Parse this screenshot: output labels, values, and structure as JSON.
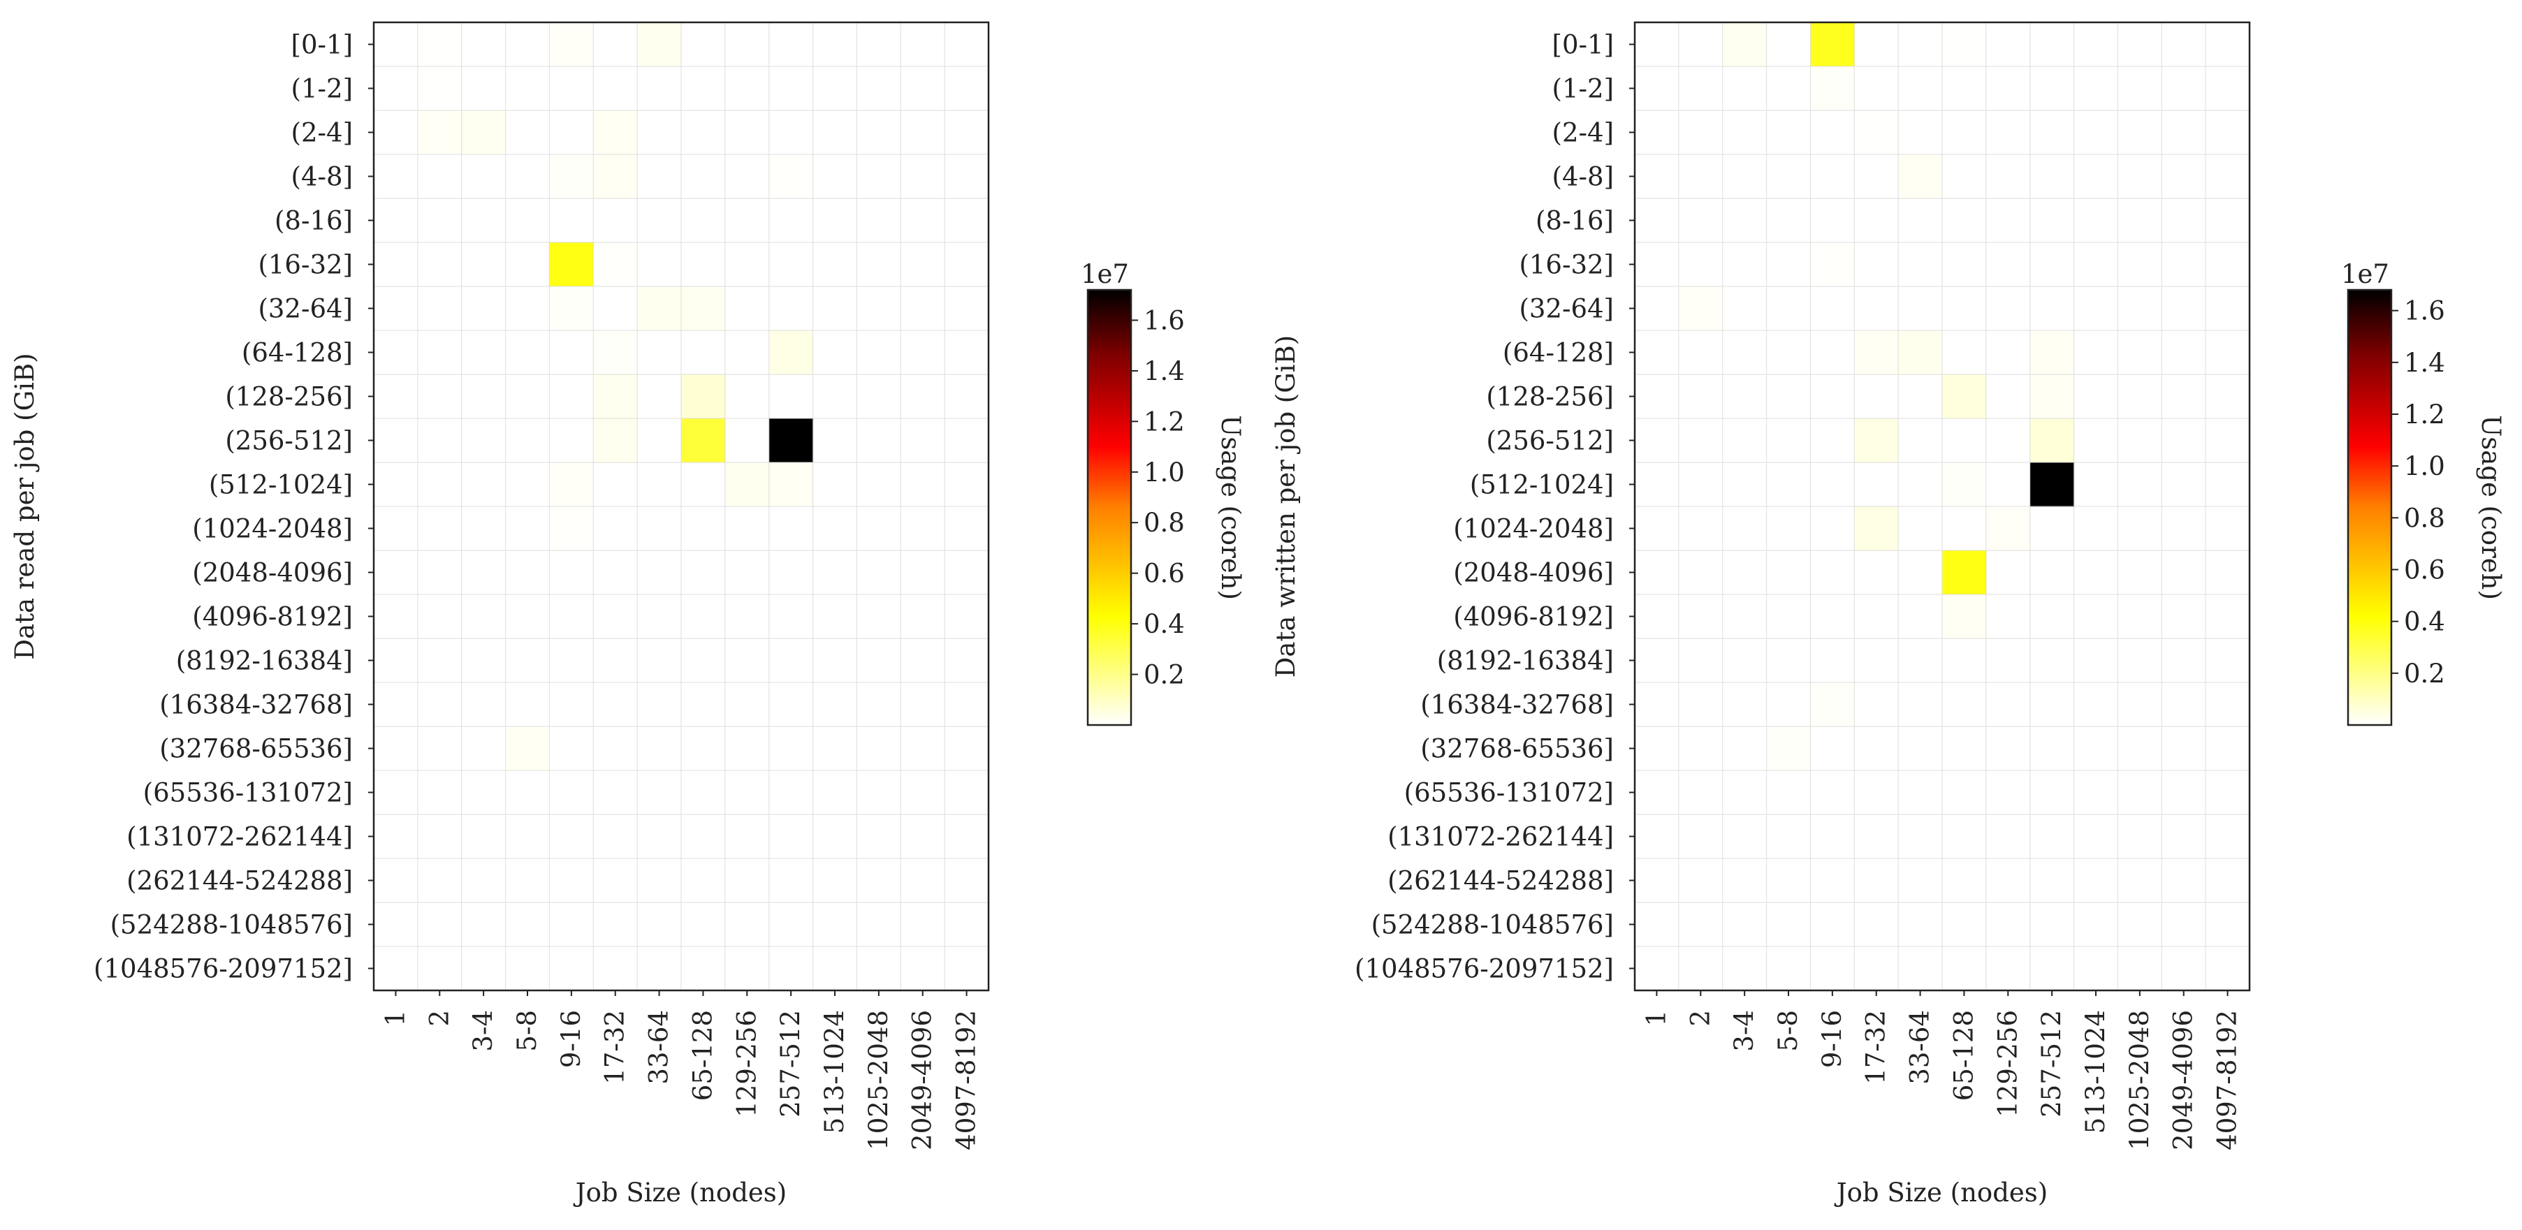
{
  "chart_data": [
    {
      "type": "heatmap",
      "xlabel": "Job Size (nodes)",
      "ylabel": "Data read per job (GiB)",
      "x_categories": [
        "1",
        "2",
        "3-4",
        "5-8",
        "9-16",
        "17-32",
        "33-64",
        "65-128",
        "129-256",
        "257-512",
        "513-1024",
        "1025-2048",
        "2049-4096",
        "4097-8192"
      ],
      "y_categories": [
        "[0-1]",
        "(1-2]",
        "(2-4]",
        "(4-8]",
        "(8-16]",
        "(16-32]",
        "(32-64]",
        "(64-128]",
        "(128-256]",
        "(256-512]",
        "(512-1024]",
        "(1024-2048]",
        "(2048-4096]",
        "(4096-8192]",
        "(8192-16384]",
        "(16384-32768]",
        "(32768-65536]",
        "(65536-131072]",
        "(131072-262144]",
        "(262144-524288]",
        "(524288-1048576]",
        "(1048576-2097152]"
      ],
      "grid": true,
      "colormap": "hot_r",
      "colorbar": {
        "label": "Usage (coreh)",
        "offset_text": "1e7",
        "range": [
          0,
          1.72
        ],
        "ticks": [
          "0.2",
          "0.4",
          "0.6",
          "0.8",
          "1.0",
          "1.2",
          "1.4",
          "1.6"
        ],
        "tick_values": [
          0.2,
          0.4,
          0.6,
          0.8,
          1.0,
          1.2,
          1.4,
          1.6
        ]
      },
      "values_unit": "1e7 coreh",
      "cells": [
        {
          "y": 0,
          "x": 1,
          "v": 0.003
        },
        {
          "y": 0,
          "x": 4,
          "v": 0.012
        },
        {
          "y": 0,
          "x": 6,
          "v": 0.03
        },
        {
          "y": 1,
          "x": 1,
          "v": 0.004
        },
        {
          "y": 2,
          "x": 1,
          "v": 0.018
        },
        {
          "y": 2,
          "x": 2,
          "v": 0.025
        },
        {
          "y": 2,
          "x": 5,
          "v": 0.02
        },
        {
          "y": 3,
          "x": 4,
          "v": 0.01
        },
        {
          "y": 3,
          "x": 5,
          "v": 0.02
        },
        {
          "y": 3,
          "x": 9,
          "v": 0.005
        },
        {
          "y": 5,
          "x": 4,
          "v": 0.43
        },
        {
          "y": 5,
          "x": 5,
          "v": 0.008
        },
        {
          "y": 6,
          "x": 4,
          "v": 0.01
        },
        {
          "y": 6,
          "x": 6,
          "v": 0.03
        },
        {
          "y": 6,
          "x": 7,
          "v": 0.025
        },
        {
          "y": 7,
          "x": 5,
          "v": 0.01
        },
        {
          "y": 7,
          "x": 9,
          "v": 0.045
        },
        {
          "y": 8,
          "x": 5,
          "v": 0.03
        },
        {
          "y": 8,
          "x": 7,
          "v": 0.08
        },
        {
          "y": 9,
          "x": 5,
          "v": 0.03
        },
        {
          "y": 9,
          "x": 7,
          "v": 0.36
        },
        {
          "y": 9,
          "x": 9,
          "v": 1.72
        },
        {
          "y": 10,
          "x": 4,
          "v": 0.012
        },
        {
          "y": 10,
          "x": 8,
          "v": 0.03
        },
        {
          "y": 10,
          "x": 9,
          "v": 0.02
        },
        {
          "y": 11,
          "x": 4,
          "v": 0.008
        },
        {
          "y": 16,
          "x": 3,
          "v": 0.02
        }
      ]
    },
    {
      "type": "heatmap",
      "xlabel": "Job Size (nodes)",
      "ylabel": "Data written per job (GiB)",
      "x_categories": [
        "1",
        "2",
        "3-4",
        "5-8",
        "9-16",
        "17-32",
        "33-64",
        "65-128",
        "129-256",
        "257-512",
        "513-1024",
        "1025-2048",
        "2049-4096",
        "4097-8192"
      ],
      "y_categories": [
        "[0-1]",
        "(1-2]",
        "(2-4]",
        "(4-8]",
        "(8-16]",
        "(16-32]",
        "(32-64]",
        "(64-128]",
        "(128-256]",
        "(256-512]",
        "(512-1024]",
        "(1024-2048]",
        "(2048-4096]",
        "(4096-8192]",
        "(8192-16384]",
        "(16384-32768]",
        "(32768-65536]",
        "(65536-131072]",
        "(131072-262144]",
        "(262144-524288]",
        "(524288-1048576]",
        "(1048576-2097152]"
      ],
      "grid": true,
      "colormap": "hot_r",
      "colorbar": {
        "label": "Usage (coreh)",
        "offset_text": "1e7",
        "range": [
          0,
          1.68
        ],
        "ticks": [
          "0.2",
          "0.4",
          "0.6",
          "0.8",
          "1.0",
          "1.2",
          "1.4",
          "1.6"
        ],
        "tick_values": [
          0.2,
          0.4,
          0.6,
          0.8,
          1.0,
          1.2,
          1.4,
          1.6
        ]
      },
      "values_unit": "1e7 coreh",
      "cells": [
        {
          "y": 0,
          "x": 2,
          "v": 0.025
        },
        {
          "y": 0,
          "x": 4,
          "v": 0.4
        },
        {
          "y": 0,
          "x": 7,
          "v": 0.004
        },
        {
          "y": 1,
          "x": 4,
          "v": 0.01
        },
        {
          "y": 2,
          "x": 5,
          "v": 0.004
        },
        {
          "y": 3,
          "x": 6,
          "v": 0.02
        },
        {
          "y": 5,
          "x": 4,
          "v": 0.005
        },
        {
          "y": 6,
          "x": 1,
          "v": 0.015
        },
        {
          "y": 7,
          "x": 5,
          "v": 0.02
        },
        {
          "y": 7,
          "x": 6,
          "v": 0.03
        },
        {
          "y": 7,
          "x": 9,
          "v": 0.02
        },
        {
          "y": 8,
          "x": 7,
          "v": 0.06
        },
        {
          "y": 8,
          "x": 9,
          "v": 0.02
        },
        {
          "y": 9,
          "x": 5,
          "v": 0.05
        },
        {
          "y": 9,
          "x": 9,
          "v": 0.07
        },
        {
          "y": 10,
          "x": 7,
          "v": 0.01
        },
        {
          "y": 10,
          "x": 9,
          "v": 1.68
        },
        {
          "y": 11,
          "x": 5,
          "v": 0.05
        },
        {
          "y": 11,
          "x": 8,
          "v": 0.015
        },
        {
          "y": 12,
          "x": 7,
          "v": 0.42
        },
        {
          "y": 13,
          "x": 7,
          "v": 0.02
        },
        {
          "y": 15,
          "x": 4,
          "v": 0.01
        },
        {
          "y": 16,
          "x": 3,
          "v": 0.01
        }
      ]
    }
  ]
}
